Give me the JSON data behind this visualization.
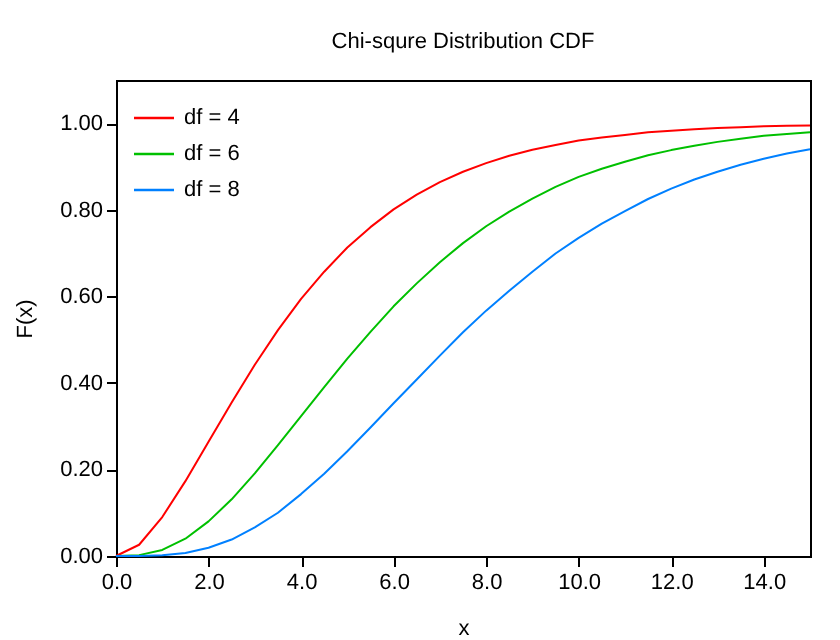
{
  "chart_data": {
    "type": "line",
    "title": "Chi-squre Distribution CDF",
    "xlabel": "x",
    "ylabel": "F(x)",
    "x": [
      0,
      0.5,
      1,
      1.5,
      2,
      2.5,
      3,
      3.5,
      4,
      4.5,
      5,
      5.5,
      6,
      6.5,
      7,
      7.5,
      8,
      8.5,
      9,
      9.5,
      10,
      10.5,
      11,
      11.5,
      12,
      12.5,
      13,
      13.5,
      14,
      14.5,
      15
    ],
    "series": [
      {
        "name": "df = 4",
        "color": "#ff0000",
        "values": [
          0,
          0.026,
          0.09,
          0.173,
          0.264,
          0.355,
          0.442,
          0.522,
          0.594,
          0.657,
          0.713,
          0.76,
          0.801,
          0.835,
          0.864,
          0.888,
          0.908,
          0.925,
          0.939,
          0.95,
          0.96,
          0.967,
          0.973,
          0.979,
          0.983,
          0.986,
          0.989,
          0.991,
          0.993,
          0.994,
          0.995
        ]
      },
      {
        "name": "df = 6",
        "color": "#00c000",
        "values": [
          0,
          0.002,
          0.014,
          0.04,
          0.08,
          0.131,
          0.191,
          0.256,
          0.323,
          0.39,
          0.456,
          0.518,
          0.577,
          0.63,
          0.679,
          0.723,
          0.762,
          0.796,
          0.826,
          0.853,
          0.876,
          0.895,
          0.911,
          0.926,
          0.938,
          0.948,
          0.957,
          0.964,
          0.971,
          0.975,
          0.979
        ]
      },
      {
        "name": "df = 8",
        "color": "#0080ff",
        "values": [
          0,
          0,
          0.002,
          0.007,
          0.019,
          0.038,
          0.066,
          0.1,
          0.143,
          0.19,
          0.242,
          0.297,
          0.353,
          0.408,
          0.463,
          0.517,
          0.567,
          0.613,
          0.657,
          0.699,
          0.735,
          0.768,
          0.797,
          0.825,
          0.849,
          0.87,
          0.888,
          0.904,
          0.918,
          0.93,
          0.94
        ]
      }
    ],
    "xlim": [
      0,
      15
    ],
    "xticks": [
      {
        "value": 0,
        "label": "0.0"
      },
      {
        "value": 2,
        "label": "2.0"
      },
      {
        "value": 4,
        "label": "4.0"
      },
      {
        "value": 6,
        "label": "6.0"
      },
      {
        "value": 8,
        "label": "8.0"
      },
      {
        "value": 10,
        "label": "10.0"
      },
      {
        "value": 12,
        "label": "12.0"
      },
      {
        "value": 14,
        "label": "14.0"
      }
    ],
    "ylim": [
      0,
      1.1
    ],
    "yticks": [
      {
        "value": 0,
        "label": "0.00"
      },
      {
        "value": 0.2,
        "label": "0.20"
      },
      {
        "value": 0.4,
        "label": "0.40"
      },
      {
        "value": 0.6,
        "label": "0.60"
      },
      {
        "value": 0.8,
        "label": "0.80"
      },
      {
        "value": 1,
        "label": "1.00"
      }
    ],
    "legend": "top left",
    "grid": false,
    "marker": "none",
    "line_style": "solid"
  }
}
